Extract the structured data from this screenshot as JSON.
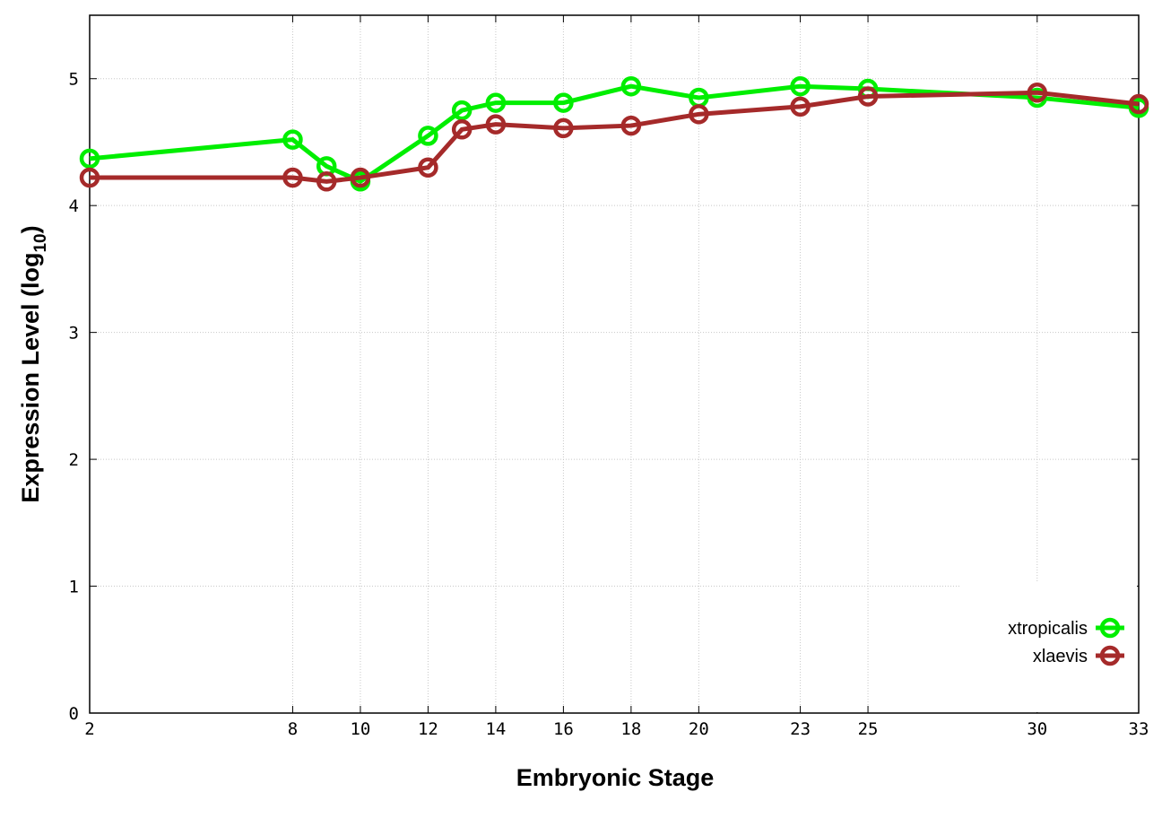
{
  "chart_data": {
    "type": "line",
    "xlabel": "Embryonic Stage",
    "ylabel_main": "Expression Level (log",
    "ylabel_sub": "10",
    "ylabel_end": ")",
    "xlim": [
      2,
      33
    ],
    "ylim": [
      0,
      5.5
    ],
    "xticks": [
      2,
      8,
      10,
      12,
      14,
      16,
      18,
      20,
      23,
      25,
      30,
      33
    ],
    "yticks": [
      0,
      1,
      2,
      3,
      4,
      5
    ],
    "grid": true,
    "legend_placement": "bottom-right",
    "x": [
      2,
      8,
      9,
      10,
      12,
      13,
      14,
      16,
      18,
      20,
      23,
      25,
      30,
      33
    ],
    "series": [
      {
        "name": "xtropicalis",
        "color": "#00ee00",
        "values": [
          4.37,
          4.52,
          4.31,
          4.19,
          4.55,
          4.75,
          4.81,
          4.81,
          4.94,
          4.85,
          4.94,
          4.92,
          4.85,
          4.77
        ]
      },
      {
        "name": "xlaevis",
        "color": "#a52a2a",
        "values": [
          4.22,
          4.22,
          4.19,
          4.22,
          4.3,
          4.6,
          4.64,
          4.61,
          4.63,
          4.72,
          4.78,
          4.86,
          4.89,
          4.8
        ]
      }
    ]
  }
}
